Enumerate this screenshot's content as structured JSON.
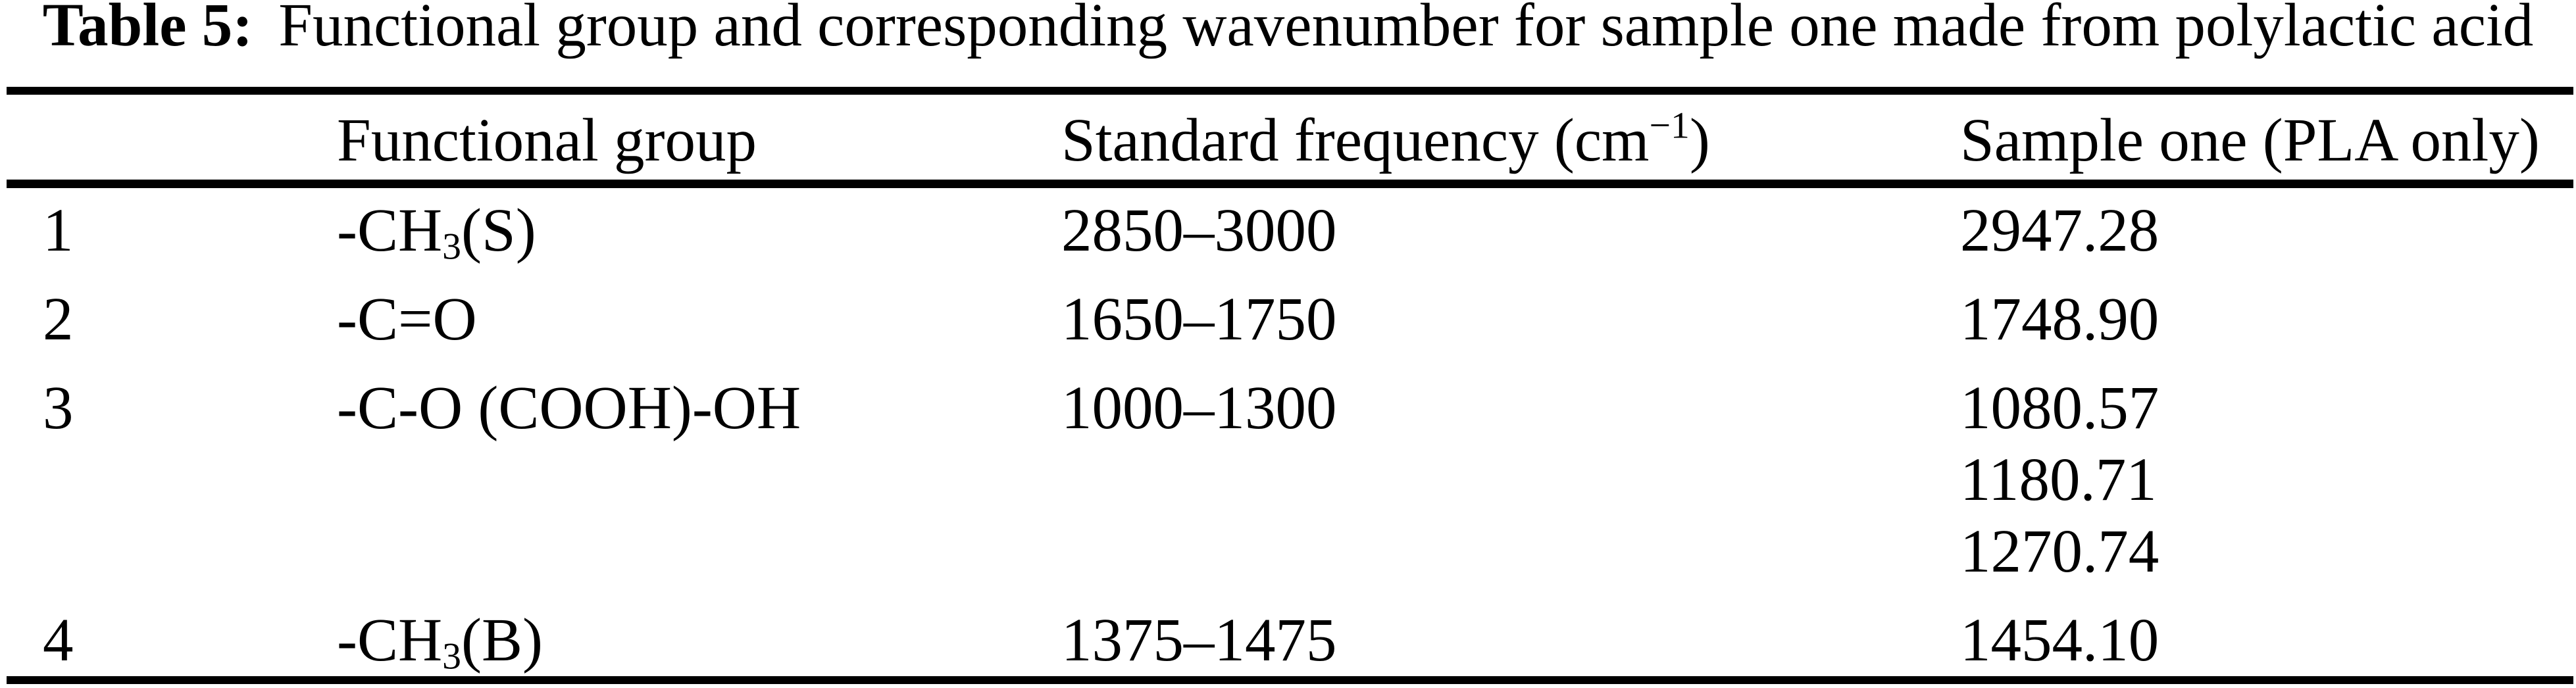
{
  "caption": {
    "label": "Table 5:",
    "text": "Functional group and corresponding wavenumber for sample one made from polylactic acid"
  },
  "colors": {
    "text": "#000000",
    "background": "#ffffff",
    "rule": "#000000"
  },
  "table": {
    "headers": {
      "index": "",
      "functional_group": "Functional group",
      "standard_frequency": {
        "prefix": "Standard frequency (cm",
        "sup": "−1",
        "suffix": ")"
      },
      "sample_one": "Sample one (PLA only)"
    },
    "rows": [
      {
        "index": "1",
        "functional_group": {
          "prefix": "-CH",
          "sub": "3",
          "suffix": "(S)"
        },
        "standard_frequency": "2850–3000",
        "sample_one": [
          "2947.28"
        ]
      },
      {
        "index": "2",
        "functional_group": {
          "prefix": "-C=O",
          "sub": "",
          "suffix": ""
        },
        "standard_frequency": "1650–1750",
        "sample_one": [
          "1748.90"
        ]
      },
      {
        "index": "3",
        "functional_group": {
          "prefix": "-C-O (COOH)-OH",
          "sub": "",
          "suffix": ""
        },
        "standard_frequency": "1000–1300",
        "sample_one": [
          "1080.57",
          "1180.71",
          "1270.74"
        ]
      },
      {
        "index": "4",
        "functional_group": {
          "prefix": "-CH",
          "sub": "3",
          "suffix": "(B)"
        },
        "standard_frequency": "1375–1475",
        "sample_one": [
          "1454.10"
        ]
      }
    ]
  }
}
